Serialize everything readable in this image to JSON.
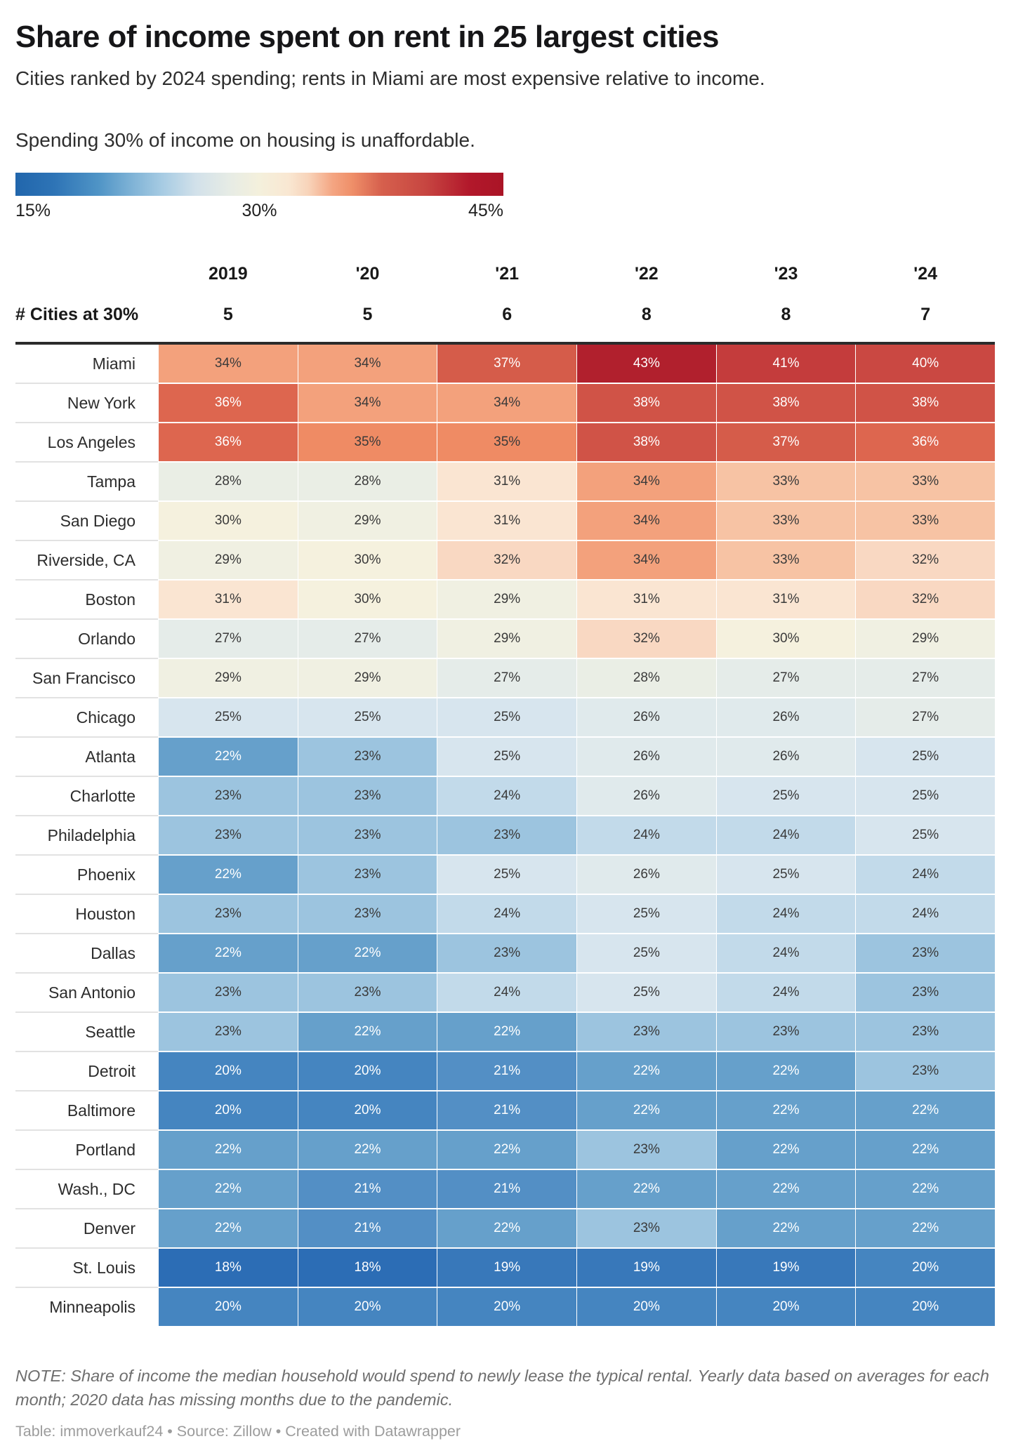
{
  "header": {
    "title": "Share of income spent on rent in 25 largest cities",
    "subtitle": "Cities ranked by 2024 spending; rents in Miami are most expensive relative to income."
  },
  "legend": {
    "caption": "Spending 30% of income on housing is unaffordable.",
    "min_label": "15%",
    "mid_label": "30%",
    "max_label": "45%",
    "min_color": "#2166ac",
    "mid_color": "#f4f0dc",
    "max_color": "#b2182b"
  },
  "table": {
    "count_label": "# Cities at 30%",
    "value_suffix": "%",
    "white_text_max_blue": 22,
    "white_text_min_red": 36,
    "text_color_dark": "#3a3a3a",
    "text_color_light": "#ffffff"
  },
  "value_colors": {
    "18": "#2c6db5",
    "19": "#3878ba",
    "20": "#4585c0",
    "21": "#538fc5",
    "22": "#66a0cb",
    "23": "#9cc4df",
    "24": "#c2daea",
    "25": "#d7e5ee",
    "26": "#e0eaec",
    "27": "#e5ece9",
    "28": "#eaeee5",
    "29": "#f0f0e2",
    "30": "#f5f1de",
    "31": "#fae5d2",
    "32": "#f9d8c2",
    "33": "#f7c3a4",
    "34": "#f3a17c",
    "35": "#ef8b64",
    "36": "#dd664f",
    "37": "#d55c4a",
    "38": "#d05347",
    "40": "#ca4842",
    "41": "#c43c3c",
    "43": "#b1202d"
  },
  "chart_data": {
    "type": "heatmap",
    "title": "Share of income spent on rent in 25 largest cities",
    "subtitle": "Cities ranked by 2024 spending; rents in Miami are most expensive relative to income.",
    "unit": "%",
    "columns": [
      "2019",
      "'20",
      "'21",
      "'22",
      "'23",
      "'24"
    ],
    "cities_at_30pct": [
      "5",
      "5",
      "6",
      "8",
      "8",
      "7"
    ],
    "color_scale": {
      "min": 15,
      "mid": 30,
      "max": 45,
      "min_color": "#2166ac",
      "mid_color": "#f4f0dc",
      "max_color": "#b2182b"
    },
    "rows": [
      {
        "city": "Miami",
        "values": [
          34,
          34,
          37,
          43,
          41,
          40
        ]
      },
      {
        "city": "New York",
        "values": [
          36,
          34,
          34,
          38,
          38,
          38
        ]
      },
      {
        "city": "Los Angeles",
        "values": [
          36,
          35,
          35,
          38,
          37,
          36
        ]
      },
      {
        "city": "Tampa",
        "values": [
          28,
          28,
          31,
          34,
          33,
          33
        ]
      },
      {
        "city": "San Diego",
        "values": [
          30,
          29,
          31,
          34,
          33,
          33
        ]
      },
      {
        "city": "Riverside, CA",
        "values": [
          29,
          30,
          32,
          34,
          33,
          32
        ]
      },
      {
        "city": "Boston",
        "values": [
          31,
          30,
          29,
          31,
          31,
          32
        ]
      },
      {
        "city": "Orlando",
        "values": [
          27,
          27,
          29,
          32,
          30,
          29
        ]
      },
      {
        "city": "San Francisco",
        "values": [
          29,
          29,
          27,
          28,
          27,
          27
        ]
      },
      {
        "city": "Chicago",
        "values": [
          25,
          25,
          25,
          26,
          26,
          27
        ]
      },
      {
        "city": "Atlanta",
        "values": [
          22,
          23,
          25,
          26,
          26,
          25
        ]
      },
      {
        "city": "Charlotte",
        "values": [
          23,
          23,
          24,
          26,
          25,
          25
        ]
      },
      {
        "city": "Philadelphia",
        "values": [
          23,
          23,
          23,
          24,
          24,
          25
        ]
      },
      {
        "city": "Phoenix",
        "values": [
          22,
          23,
          25,
          26,
          25,
          24
        ]
      },
      {
        "city": "Houston",
        "values": [
          23,
          23,
          24,
          25,
          24,
          24
        ]
      },
      {
        "city": "Dallas",
        "values": [
          22,
          22,
          23,
          25,
          24,
          23
        ]
      },
      {
        "city": "San Antonio",
        "values": [
          23,
          23,
          24,
          25,
          24,
          23
        ]
      },
      {
        "city": "Seattle",
        "values": [
          23,
          22,
          22,
          23,
          23,
          23
        ]
      },
      {
        "city": "Detroit",
        "values": [
          20,
          20,
          21,
          22,
          22,
          23
        ]
      },
      {
        "city": "Baltimore",
        "values": [
          20,
          20,
          21,
          22,
          22,
          22
        ]
      },
      {
        "city": "Portland",
        "values": [
          22,
          22,
          22,
          23,
          22,
          22
        ]
      },
      {
        "city": "Wash., DC",
        "values": [
          22,
          21,
          21,
          22,
          22,
          22
        ]
      },
      {
        "city": "Denver",
        "values": [
          22,
          21,
          22,
          23,
          22,
          22
        ]
      },
      {
        "city": "St. Louis",
        "values": [
          18,
          18,
          19,
          19,
          19,
          20
        ]
      },
      {
        "city": "Minneapolis",
        "values": [
          20,
          20,
          20,
          20,
          20,
          20
        ]
      }
    ]
  },
  "footer": {
    "note": "NOTE: Share of income the median household would spend to newly lease the typical rental. Yearly data based on averages for each month; 2020 data has missing months due to the pandemic.",
    "credit": "Table: immoverkauf24 • Source: Zillow • Created with Datawrapper"
  }
}
